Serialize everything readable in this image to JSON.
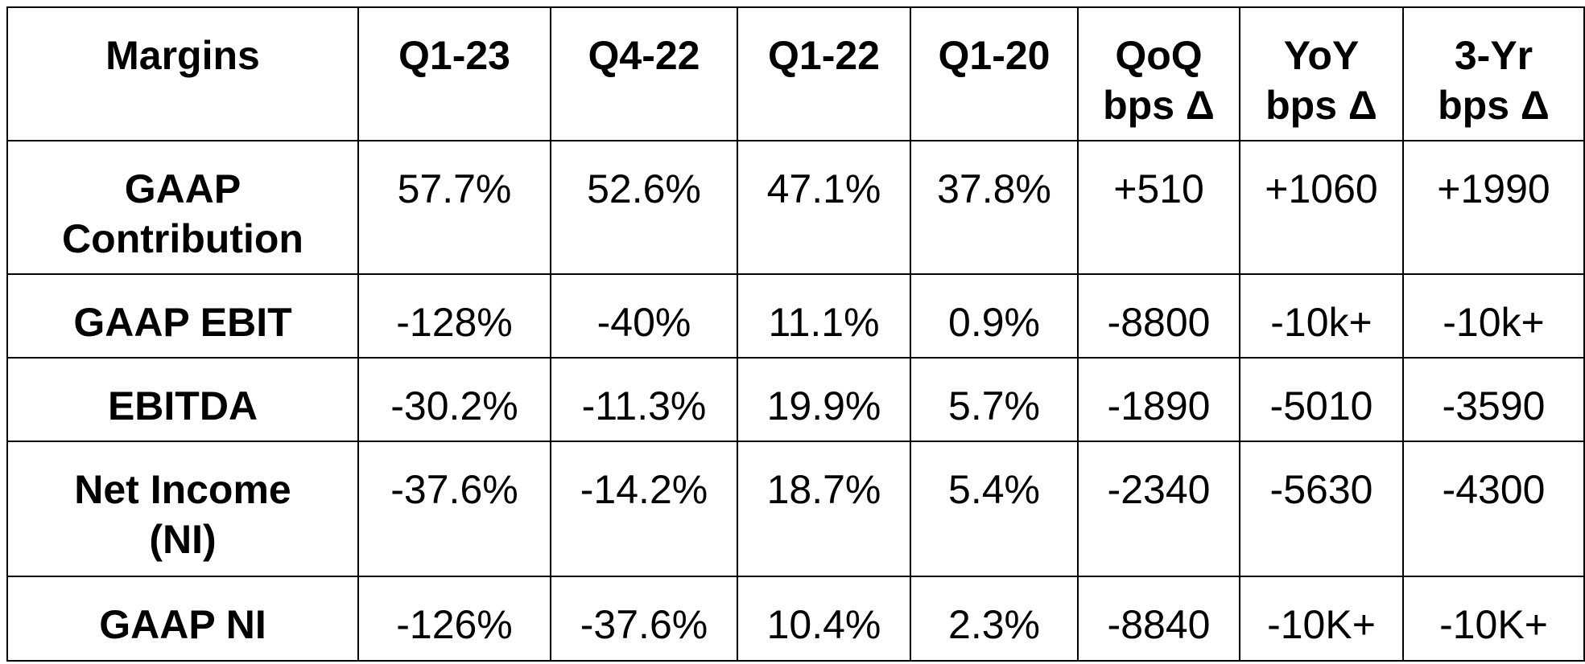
{
  "table": {
    "headers": [
      "Margins",
      "Q1-23",
      "Q4-22",
      "Q1-22",
      "Q1-20",
      "QoQ\nbps Δ",
      "YoY\nbps Δ",
      "3-Yr\nbps Δ"
    ],
    "rows": [
      {
        "label": "GAAP\nContribution",
        "values": [
          "57.7%",
          "52.6%",
          "47.1%",
          "37.8%",
          "+510",
          "+1060",
          "+1990"
        ]
      },
      {
        "label": "GAAP EBIT",
        "values": [
          "-128%",
          "-40%",
          "11.1%",
          "0.9%",
          "-8800",
          "-10k+",
          "-10k+"
        ]
      },
      {
        "label": "EBITDA",
        "values": [
          "-30.2%",
          "-11.3%",
          "19.9%",
          "5.7%",
          "-1890",
          "-5010",
          "-3590"
        ]
      },
      {
        "label": "Net Income\n(NI)",
        "values": [
          "-37.6%",
          "-14.2%",
          "18.7%",
          "5.4%",
          "-2340",
          "-5630",
          "-4300"
        ]
      },
      {
        "label": "GAAP NI",
        "values": [
          "-126%",
          "-37.6%",
          "10.4%",
          "2.3%",
          "-8840",
          "-10K+",
          "-10K+"
        ]
      }
    ]
  }
}
